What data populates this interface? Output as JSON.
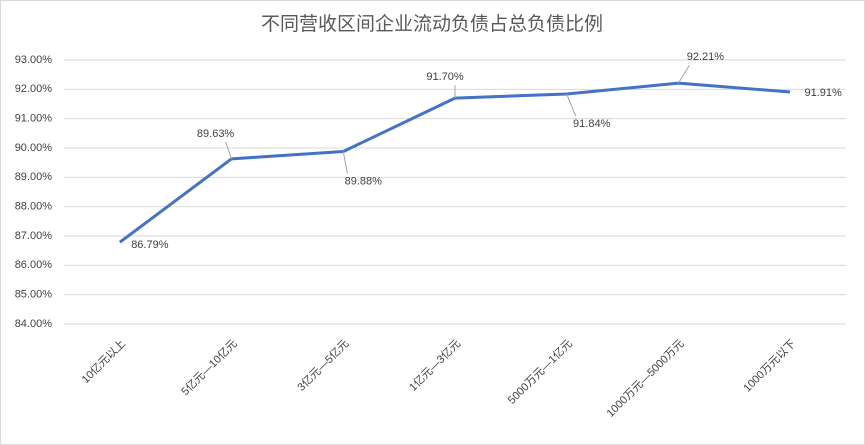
{
  "chart_data": {
    "type": "line",
    "title": "不同营收区间企业流动负债占总负债比例",
    "categories": [
      "10亿元以上",
      "5亿元—10亿元",
      "3亿元—5亿元",
      "1亿元—3亿元",
      "5000万元—1亿元",
      "1000万元—5000万元",
      "1000万元以下"
    ],
    "series": [
      {
        "name": "流动负债占总负债比例",
        "color": "#4472c4",
        "values": [
          86.79,
          89.63,
          89.88,
          91.7,
          91.84,
          92.21,
          91.91
        ],
        "value_labels": [
          "86.79%",
          "89.63%",
          "89.88%",
          "91.70%",
          "91.84%",
          "92.21%",
          "91.91%"
        ]
      }
    ],
    "ylim": [
      84,
      93
    ],
    "yticks": [
      {
        "value": 84,
        "label": "84.00%"
      },
      {
        "value": 85,
        "label": "85.00%"
      },
      {
        "value": 86,
        "label": "86.00%"
      },
      {
        "value": 87,
        "label": "87.00%"
      },
      {
        "value": 88,
        "label": "88.00%"
      },
      {
        "value": 89,
        "label": "89.00%"
      },
      {
        "value": 90,
        "label": "90.00%"
      },
      {
        "value": 91,
        "label": "91.00%"
      },
      {
        "value": 92,
        "label": "92.00%"
      },
      {
        "value": 93,
        "label": "93.00%"
      }
    ],
    "grid": true
  }
}
